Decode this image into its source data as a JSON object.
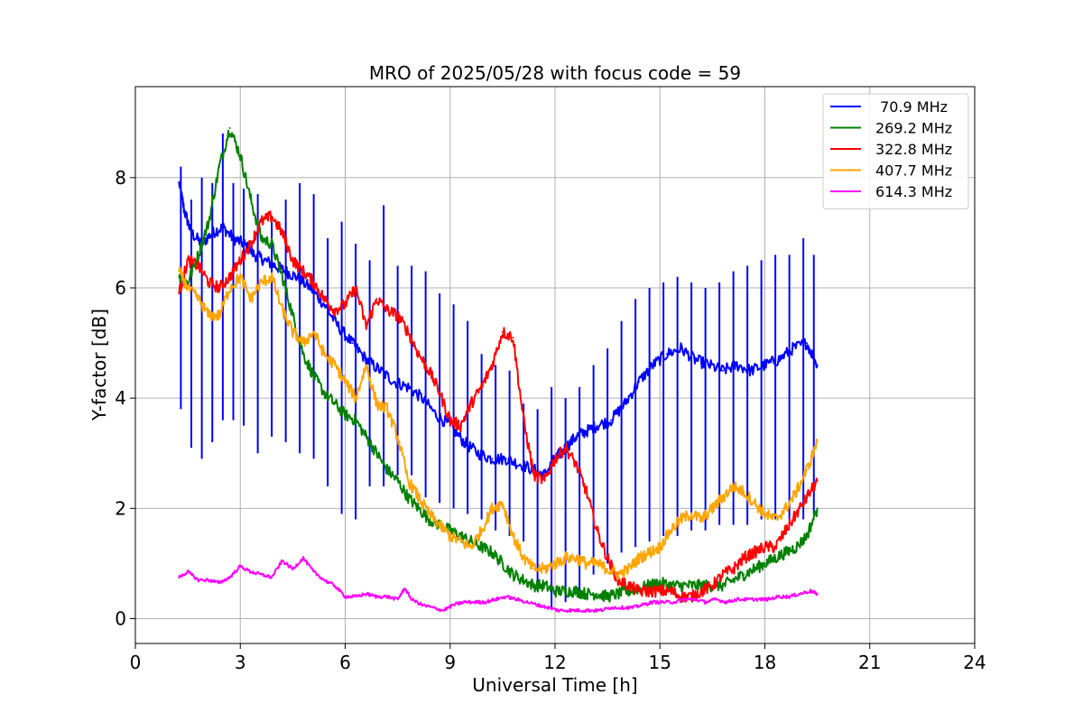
{
  "chart_data": {
    "type": "line",
    "title": "MRO of 2025/05/28 with focus code = 59",
    "xlabel": "Universal Time [h]",
    "ylabel": "Y-factor [dB]",
    "xlim": [
      0,
      24
    ],
    "ylim": [
      -0.45,
      9.65
    ],
    "xticks": [
      0,
      3,
      6,
      9,
      12,
      15,
      18,
      21,
      24
    ],
    "yticks": [
      0,
      2,
      4,
      6,
      8
    ],
    "grid": true,
    "legend_position": "top-right",
    "series": [
      {
        "name": " 70.9 MHz",
        "color": "#0000ff",
        "x": [
          1.25,
          1.4,
          1.6,
          1.9,
          2.2,
          2.5,
          2.8,
          3.1,
          3.4,
          3.7,
          4.0,
          4.3,
          4.6,
          5.0,
          5.4,
          5.8,
          6.2,
          6.6,
          7.0,
          7.4,
          7.8,
          8.2,
          8.6,
          9.0,
          9.4,
          9.8,
          10.2,
          10.6,
          11.0,
          11.4,
          11.7,
          12.0,
          12.3,
          12.6,
          12.9,
          13.2,
          13.6,
          14.0,
          14.4,
          14.8,
          15.2,
          15.6,
          16.0,
          16.4,
          16.8,
          17.2,
          17.6,
          18.0,
          18.4,
          18.8,
          19.2,
          19.5
        ],
        "values": [
          7.9,
          7.4,
          7.0,
          6.8,
          7.0,
          7.1,
          6.9,
          6.8,
          6.6,
          6.5,
          6.4,
          6.3,
          6.2,
          6.0,
          5.7,
          5.3,
          5.0,
          4.7,
          4.5,
          4.3,
          4.2,
          4.0,
          3.7,
          3.5,
          3.2,
          3.0,
          2.9,
          2.9,
          2.8,
          2.7,
          2.6,
          2.9,
          3.1,
          3.3,
          3.4,
          3.5,
          3.6,
          3.9,
          4.3,
          4.6,
          4.8,
          4.9,
          4.7,
          4.6,
          4.5,
          4.6,
          4.5,
          4.6,
          4.7,
          4.9,
          5.0,
          4.6
        ],
        "spikes": {
          "x": [
            1.3,
            1.6,
            1.9,
            2.2,
            2.5,
            2.8,
            3.1,
            3.5,
            3.9,
            4.3,
            4.7,
            5.1,
            5.5,
            5.9,
            6.3,
            6.7,
            7.1,
            7.5,
            7.9,
            8.3,
            8.7,
            9.1,
            9.5,
            9.9,
            10.3,
            10.7,
            11.1,
            11.5,
            11.9,
            12.3,
            12.7,
            13.1,
            13.5,
            13.9,
            14.3,
            14.7,
            15.1,
            15.5,
            15.9,
            16.3,
            16.7,
            17.1,
            17.5,
            17.9,
            18.3,
            18.7,
            19.1,
            19.4
          ],
          "high": [
            8.2,
            7.6,
            8.0,
            7.9,
            8.8,
            7.9,
            7.8,
            7.7,
            7.2,
            7.6,
            7.9,
            7.7,
            6.9,
            7.2,
            6.8,
            6.5,
            7.5,
            6.4,
            6.4,
            6.3,
            5.9,
            5.7,
            5.4,
            4.8,
            4.6,
            4.5,
            3.9,
            3.8,
            4.2,
            4.0,
            4.2,
            4.6,
            4.9,
            5.4,
            5.8,
            6.0,
            6.1,
            6.2,
            6.1,
            6.0,
            6.1,
            6.3,
            6.4,
            6.5,
            6.6,
            6.6,
            6.9,
            6.6
          ],
          "low": [
            3.8,
            3.1,
            2.9,
            3.2,
            3.6,
            3.6,
            3.5,
            3.0,
            3.3,
            3.2,
            3.0,
            2.9,
            2.4,
            1.9,
            1.8,
            2.4,
            2.4,
            2.6,
            2.6,
            2.2,
            2.1,
            2.0,
            1.9,
            1.8,
            1.6,
            1.5,
            1.4,
            0.5,
            0.2,
            0.3,
            0.4,
            0.8,
            1.0,
            1.2,
            1.3,
            1.4,
            1.5,
            1.5,
            1.6,
            1.6,
            1.7,
            1.7,
            1.7,
            1.8,
            1.8,
            1.8,
            1.8,
            1.9
          ]
        }
      },
      {
        "name": "269.2 MHz",
        "color": "#008000",
        "x": [
          1.25,
          1.5,
          1.8,
          2.1,
          2.4,
          2.7,
          3.0,
          3.3,
          3.6,
          3.9,
          4.2,
          4.5,
          4.8,
          5.1,
          5.4,
          5.7,
          6.0,
          6.3,
          6.6,
          6.9,
          7.2,
          7.5,
          7.8,
          8.1,
          8.4,
          8.7,
          9.0,
          9.3,
          9.6,
          9.9,
          10.2,
          10.5,
          10.8,
          11.1,
          11.4,
          11.7,
          12.0,
          12.3,
          12.6,
          12.9,
          13.2,
          13.5,
          13.8,
          14.1,
          14.4,
          14.7,
          15.0,
          15.3,
          15.6,
          15.9,
          16.2,
          16.5,
          16.8,
          17.1,
          17.4,
          17.7,
          18.0,
          18.3,
          18.6,
          18.9,
          19.2,
          19.5
        ],
        "values": [
          6.2,
          6.1,
          6.6,
          7.2,
          8.2,
          8.9,
          8.4,
          7.6,
          6.9,
          6.8,
          6.2,
          5.5,
          4.8,
          4.4,
          4.1,
          3.9,
          3.7,
          3.6,
          3.3,
          3.0,
          2.7,
          2.5,
          2.2,
          2.0,
          1.8,
          1.7,
          1.6,
          1.5,
          1.4,
          1.3,
          1.2,
          1.0,
          0.8,
          0.7,
          0.6,
          0.6,
          0.5,
          0.5,
          0.5,
          0.45,
          0.45,
          0.4,
          0.45,
          0.5,
          0.55,
          0.6,
          0.65,
          0.6,
          0.6,
          0.6,
          0.6,
          0.6,
          0.6,
          0.7,
          0.8,
          0.9,
          1.0,
          1.1,
          1.2,
          1.3,
          1.5,
          2.0
        ]
      },
      {
        "name": "322.8 MHz",
        "color": "#ff0000",
        "x": [
          1.25,
          1.5,
          1.8,
          2.1,
          2.4,
          2.7,
          3.0,
          3.3,
          3.6,
          3.9,
          4.2,
          4.5,
          4.8,
          5.1,
          5.4,
          5.7,
          6.0,
          6.3,
          6.6,
          6.9,
          7.2,
          7.5,
          7.8,
          8.1,
          8.4,
          8.7,
          9.0,
          9.3,
          9.6,
          9.9,
          10.2,
          10.5,
          10.8,
          11.1,
          11.4,
          11.7,
          12.0,
          12.3,
          12.6,
          12.9,
          13.2,
          13.5,
          13.8,
          14.1,
          14.4,
          14.7,
          15.0,
          15.3,
          15.6,
          15.9,
          16.2,
          16.5,
          16.8,
          17.1,
          17.4,
          17.7,
          18.0,
          18.3,
          18.6,
          18.9,
          19.2,
          19.5
        ],
        "values": [
          5.9,
          6.5,
          6.4,
          6.1,
          6.0,
          6.2,
          6.5,
          6.8,
          7.2,
          7.3,
          7.0,
          6.5,
          6.3,
          6.1,
          5.8,
          5.6,
          5.7,
          6.0,
          5.3,
          5.8,
          5.6,
          5.5,
          5.2,
          4.8,
          4.5,
          4.1,
          3.6,
          3.5,
          3.9,
          4.2,
          4.6,
          5.2,
          5.1,
          3.6,
          2.6,
          2.5,
          2.9,
          3.1,
          2.8,
          2.3,
          1.6,
          1.1,
          0.7,
          0.6,
          0.5,
          0.5,
          0.5,
          0.5,
          0.4,
          0.4,
          0.5,
          0.6,
          0.8,
          0.9,
          1.1,
          1.2,
          1.3,
          1.3,
          1.6,
          1.9,
          2.2,
          2.5
        ]
      },
      {
        "name": "407.7 MHz",
        "color": "#ffa500",
        "x": [
          1.25,
          1.5,
          1.8,
          2.1,
          2.4,
          2.7,
          3.0,
          3.3,
          3.6,
          3.9,
          4.2,
          4.5,
          4.8,
          5.1,
          5.4,
          5.7,
          6.0,
          6.3,
          6.6,
          6.9,
          7.2,
          7.5,
          7.8,
          8.1,
          8.4,
          8.7,
          9.0,
          9.3,
          9.6,
          9.9,
          10.2,
          10.5,
          10.8,
          11.1,
          11.4,
          11.7,
          12.0,
          12.3,
          12.6,
          12.9,
          13.2,
          13.5,
          13.8,
          14.1,
          14.4,
          14.7,
          15.0,
          15.3,
          15.6,
          15.9,
          16.2,
          16.5,
          16.8,
          17.1,
          17.4,
          17.7,
          18.0,
          18.3,
          18.6,
          18.9,
          19.2,
          19.5
        ],
        "values": [
          6.3,
          6.0,
          5.8,
          5.5,
          5.5,
          6.0,
          6.2,
          5.8,
          6.1,
          6.2,
          5.6,
          5.2,
          5.0,
          5.2,
          4.8,
          4.6,
          4.3,
          4.0,
          4.6,
          3.9,
          3.8,
          3.3,
          2.5,
          2.2,
          1.9,
          1.7,
          1.5,
          1.4,
          1.3,
          1.6,
          2.0,
          2.1,
          1.5,
          1.1,
          0.9,
          0.9,
          1.0,
          1.1,
          1.1,
          1.0,
          1.0,
          0.9,
          0.8,
          0.9,
          1.1,
          1.2,
          1.3,
          1.6,
          1.8,
          1.9,
          1.8,
          2.0,
          2.2,
          2.4,
          2.3,
          2.1,
          1.9,
          1.8,
          2.0,
          2.3,
          2.7,
          3.2
        ]
      },
      {
        "name": "614.3 MHz",
        "color": "#ff00ff",
        "x": [
          1.25,
          1.5,
          1.8,
          2.1,
          2.4,
          2.7,
          3.0,
          3.3,
          3.6,
          3.9,
          4.2,
          4.5,
          4.8,
          5.1,
          5.4,
          5.7,
          6.0,
          6.3,
          6.6,
          6.9,
          7.2,
          7.5,
          7.7,
          7.9,
          8.2,
          8.5,
          8.8,
          9.1,
          9.4,
          9.7,
          10.0,
          10.3,
          10.6,
          10.9,
          11.2,
          11.5,
          11.8,
          12.1,
          12.4,
          12.7,
          13.0,
          13.3,
          13.6,
          13.9,
          14.2,
          14.5,
          14.8,
          15.1,
          15.4,
          15.7,
          16.0,
          16.3,
          16.6,
          16.9,
          17.2,
          17.5,
          17.8,
          18.1,
          18.4,
          18.7,
          19.0,
          19.3,
          19.5
        ],
        "values": [
          0.75,
          0.85,
          0.7,
          0.7,
          0.65,
          0.75,
          0.95,
          0.85,
          0.8,
          0.75,
          1.05,
          0.9,
          1.1,
          0.85,
          0.7,
          0.6,
          0.4,
          0.4,
          0.45,
          0.4,
          0.4,
          0.35,
          0.55,
          0.35,
          0.25,
          0.2,
          0.15,
          0.25,
          0.3,
          0.3,
          0.3,
          0.35,
          0.4,
          0.35,
          0.3,
          0.25,
          0.2,
          0.15,
          0.15,
          0.15,
          0.15,
          0.15,
          0.2,
          0.2,
          0.2,
          0.25,
          0.3,
          0.3,
          0.3,
          0.35,
          0.35,
          0.3,
          0.35,
          0.3,
          0.35,
          0.35,
          0.35,
          0.35,
          0.4,
          0.4,
          0.45,
          0.5,
          0.45
        ]
      }
    ]
  }
}
